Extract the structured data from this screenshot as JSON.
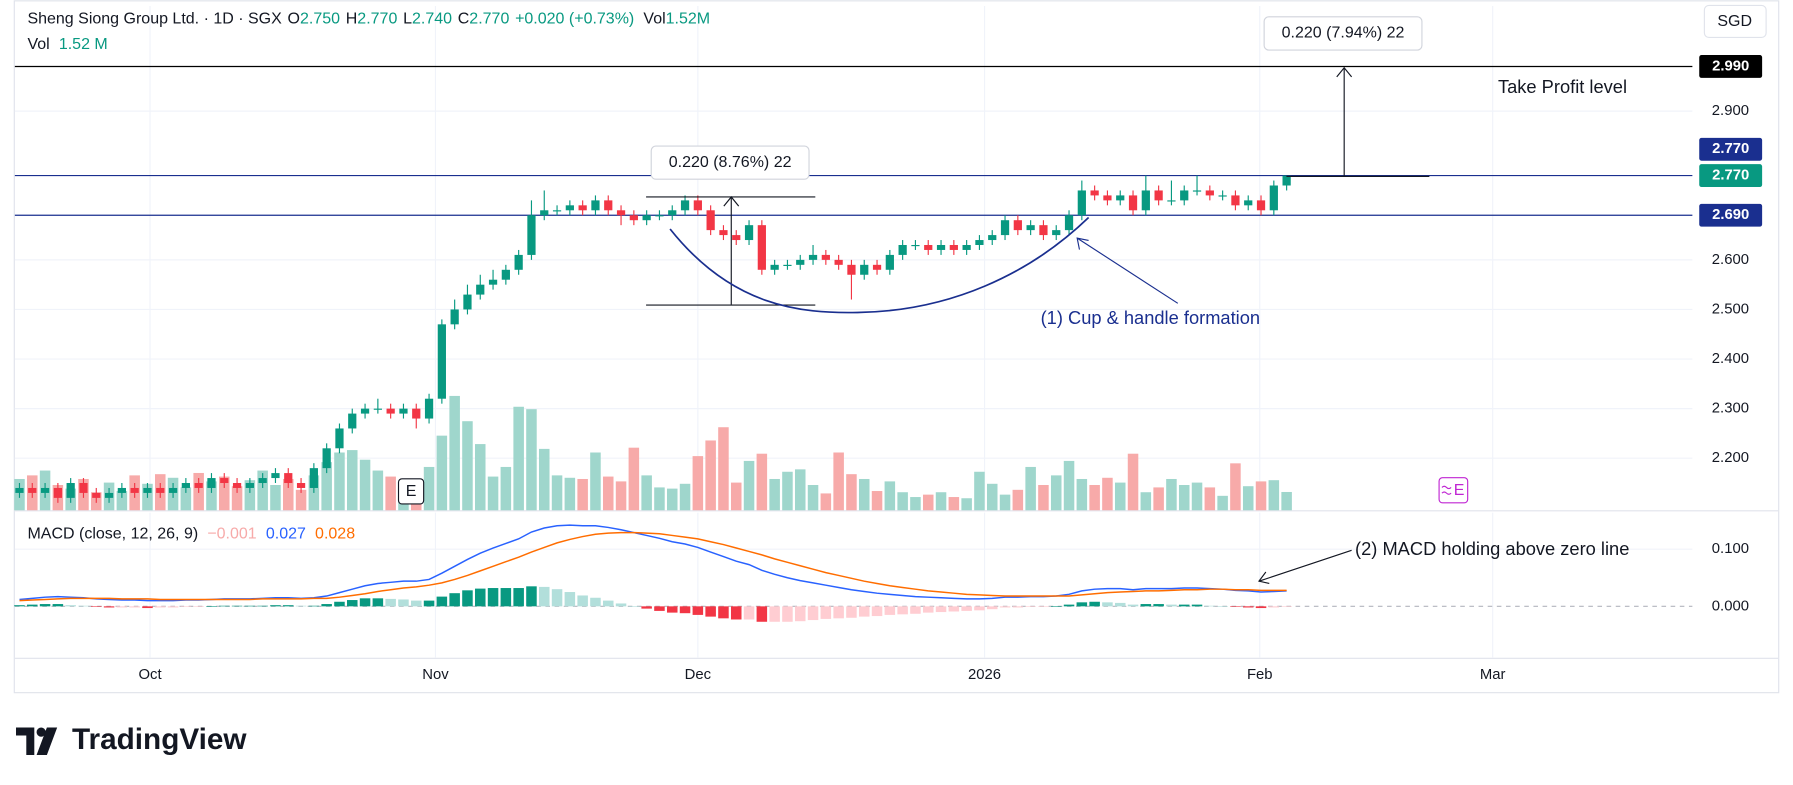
{
  "chart_data": [
    {
      "type": "candlestick",
      "legend": {
        "symbol": "Sheng Siong Group Ltd. · 1D · SGX",
        "open_key": "O",
        "open": "2.750",
        "high_key": "H",
        "high": "2.770",
        "low_key": "L",
        "low": "2.740",
        "close_key": "C",
        "close": "2.770",
        "change": "+0.020 (+0.73%)",
        "volume_key": "Vol",
        "volume": "1.52M"
      },
      "volume_legend": {
        "name": "Vol",
        "value": "1.52 M"
      },
      "currency": "SGD",
      "open": [
        2.13,
        2.14,
        2.13,
        2.14,
        2.12,
        2.15,
        2.13,
        2.12,
        2.13,
        2.14,
        2.13,
        2.14,
        2.13,
        2.14,
        2.15,
        2.14,
        2.16,
        2.15,
        2.14,
        2.15,
        2.16,
        2.17,
        2.15,
        2.14,
        2.18,
        2.22,
        2.26,
        2.29,
        2.3,
        2.3,
        2.29,
        2.3,
        2.28,
        2.32,
        2.47,
        2.5,
        2.53,
        2.55,
        2.56,
        2.58,
        2.61,
        2.69,
        2.7,
        2.7,
        2.71,
        2.7,
        2.72,
        2.7,
        2.69,
        2.68,
        2.69,
        2.69,
        2.7,
        2.72,
        2.7,
        2.66,
        2.65,
        2.64,
        2.67,
        2.58,
        2.59,
        2.59,
        2.6,
        2.61,
        2.6,
        2.59,
        2.57,
        2.59,
        2.58,
        2.61,
        2.63,
        2.63,
        2.62,
        2.63,
        2.62,
        2.63,
        2.64,
        2.65,
        2.68,
        2.66,
        2.67,
        2.65,
        2.66,
        2.69,
        2.74,
        2.73,
        2.72,
        2.73,
        2.7,
        2.74,
        2.72,
        2.72,
        2.74,
        2.74,
        2.73,
        2.73,
        2.71,
        2.72,
        2.7,
        2.75
      ],
      "high": [
        2.15,
        2.15,
        2.15,
        2.15,
        2.16,
        2.16,
        2.14,
        2.14,
        2.15,
        2.15,
        2.15,
        2.15,
        2.15,
        2.16,
        2.16,
        2.17,
        2.17,
        2.16,
        2.16,
        2.17,
        2.18,
        2.18,
        2.16,
        2.19,
        2.23,
        2.27,
        2.3,
        2.31,
        2.32,
        2.31,
        2.31,
        2.31,
        2.33,
        2.48,
        2.52,
        2.55,
        2.57,
        2.58,
        2.59,
        2.62,
        2.72,
        2.74,
        2.71,
        2.72,
        2.72,
        2.73,
        2.73,
        2.71,
        2.7,
        2.7,
        2.7,
        2.71,
        2.73,
        2.73,
        2.71,
        2.67,
        2.66,
        2.68,
        2.68,
        2.6,
        2.6,
        2.61,
        2.63,
        2.62,
        2.61,
        2.6,
        2.6,
        2.6,
        2.62,
        2.64,
        2.64,
        2.64,
        2.64,
        2.64,
        2.64,
        2.65,
        2.66,
        2.69,
        2.69,
        2.68,
        2.68,
        2.67,
        2.7,
        2.76,
        2.75,
        2.74,
        2.74,
        2.74,
        2.77,
        2.75,
        2.76,
        2.75,
        2.77,
        2.75,
        2.74,
        2.74,
        2.73,
        2.73,
        2.76,
        2.77
      ],
      "low": [
        2.12,
        2.12,
        2.12,
        2.11,
        2.11,
        2.12,
        2.11,
        2.11,
        2.12,
        2.12,
        2.12,
        2.12,
        2.12,
        2.13,
        2.13,
        2.13,
        2.14,
        2.13,
        2.13,
        2.14,
        2.15,
        2.14,
        2.13,
        2.13,
        2.17,
        2.21,
        2.25,
        2.28,
        2.29,
        2.28,
        2.28,
        2.26,
        2.27,
        2.31,
        2.46,
        2.49,
        2.52,
        2.54,
        2.55,
        2.57,
        2.6,
        2.68,
        2.69,
        2.69,
        2.69,
        2.69,
        2.69,
        2.67,
        2.67,
        2.67,
        2.68,
        2.68,
        2.69,
        2.69,
        2.65,
        2.64,
        2.63,
        2.63,
        2.57,
        2.57,
        2.58,
        2.58,
        2.59,
        2.59,
        2.58,
        2.52,
        2.56,
        2.57,
        2.57,
        2.6,
        2.62,
        2.61,
        2.61,
        2.61,
        2.61,
        2.62,
        2.63,
        2.64,
        2.65,
        2.65,
        2.64,
        2.64,
        2.65,
        2.68,
        2.72,
        2.71,
        2.71,
        2.69,
        2.69,
        2.71,
        2.71,
        2.71,
        2.73,
        2.72,
        2.72,
        2.7,
        2.7,
        2.69,
        2.69,
        2.74
      ],
      "close": [
        2.14,
        2.13,
        2.14,
        2.12,
        2.15,
        2.13,
        2.12,
        2.13,
        2.14,
        2.13,
        2.14,
        2.13,
        2.14,
        2.15,
        2.14,
        2.16,
        2.15,
        2.14,
        2.15,
        2.16,
        2.17,
        2.15,
        2.14,
        2.18,
        2.22,
        2.26,
        2.29,
        2.3,
        2.3,
        2.29,
        2.3,
        2.28,
        2.32,
        2.47,
        2.5,
        2.53,
        2.55,
        2.56,
        2.58,
        2.61,
        2.69,
        2.7,
        2.7,
        2.71,
        2.7,
        2.72,
        2.7,
        2.69,
        2.68,
        2.69,
        2.69,
        2.7,
        2.72,
        2.7,
        2.66,
        2.65,
        2.64,
        2.67,
        2.58,
        2.59,
        2.59,
        2.6,
        2.61,
        2.6,
        2.59,
        2.57,
        2.59,
        2.58,
        2.61,
        2.63,
        2.63,
        2.62,
        2.63,
        2.62,
        2.63,
        2.64,
        2.65,
        2.68,
        2.66,
        2.67,
        2.65,
        2.66,
        2.69,
        2.74,
        2.73,
        2.72,
        2.73,
        2.7,
        2.74,
        2.72,
        2.72,
        2.74,
        2.74,
        2.73,
        2.73,
        2.71,
        2.72,
        2.7,
        2.75,
        2.77
      ],
      "volume": [
        2.6,
        2.9,
        3.3,
        2.1,
        1.8,
        2.6,
        1.5,
        2.3,
        1.6,
        2.9,
        2.2,
        3.0,
        2.7,
        1.9,
        3.1,
        2.4,
        2.8,
        2.0,
        2.5,
        3.3,
        2.1,
        2.6,
        1.7,
        2.9,
        4.0,
        4.8,
        5.0,
        4.2,
        3.3,
        2.8,
        2.4,
        2.1,
        3.6,
        6.2,
        9.5,
        7.4,
        5.5,
        2.8,
        3.6,
        8.6,
        8.4,
        5.1,
        2.9,
        2.7,
        2.6,
        4.8,
        2.8,
        2.4,
        5.2,
        2.9,
        1.9,
        1.8,
        2.2,
        4.5,
        5.8,
        6.9,
        2.3,
        4.1,
        4.7,
        2.6,
        3.2,
        3.4,
        2.1,
        1.4,
        4.8,
        3.0,
        2.6,
        1.6,
        2.4,
        1.5,
        1.1,
        1.3,
        1.5,
        1.1,
        1.0,
        3.2,
        2.2,
        1.3,
        1.7,
        3.6,
        2.1,
        2.9,
        4.1,
        2.6,
        2.1,
        2.7,
        2.3,
        4.7,
        1.5,
        1.9,
        2.6,
        2.1,
        2.3,
        1.9,
        1.2,
        3.9,
        2.0,
        2.4,
        2.5,
        1.52
      ],
      "up_color": "#089981",
      "down_color": "#f23645",
      "volume_up_color": "#9fd6cc",
      "volume_down_color": "#f7aaa9",
      "xlim": [
        -0.36,
        130.7
      ],
      "ylim": [
        2.095,
        3.112
      ],
      "yticks": [
        {
          "value": 2.9,
          "label": "2.900"
        },
        {
          "value": 2.6,
          "label": "2.600"
        },
        {
          "value": 2.5,
          "label": "2.500"
        },
        {
          "value": 2.4,
          "label": "2.400"
        },
        {
          "value": 2.3,
          "label": "2.300"
        },
        {
          "value": 2.2,
          "label": "2.200"
        }
      ],
      "grid": true,
      "hlines": [
        {
          "value": 2.99,
          "label": "2.990",
          "color": "#000000"
        },
        {
          "value": 2.77,
          "label": "2.770",
          "color": "#1a2f8f"
        },
        {
          "value": 2.69,
          "label": "2.690",
          "color": "#1a2f8f"
        }
      ],
      "last_price": {
        "value": 2.77,
        "label": "2.770",
        "color": "#089981"
      },
      "annotations": {
        "measure_1": "0.220 (8.76%) 22",
        "measure_2": "0.220 (7.94%) 22",
        "take_profit": "Take Profit level",
        "cup": "(1) Cup & handle formation",
        "earnings": "E"
      }
    },
    {
      "type": "line",
      "legend": {
        "name": "MACD (close, 12, 26, 9)",
        "histogram": "−0.001",
        "macd": "0.027",
        "signal": "0.028"
      },
      "annotation": "(2) MACD holding above zero line",
      "xlim": [
        -0.36,
        130.7
      ],
      "xticks": [
        {
          "value": 10.2,
          "label": "Oct"
        },
        {
          "value": 32.5,
          "label": "Nov"
        },
        {
          "value": 53,
          "label": "Dec"
        },
        {
          "value": 75.4,
          "label": "2026"
        },
        {
          "value": 96.9,
          "label": "Feb"
        },
        {
          "value": 115.1,
          "label": "Mar"
        }
      ],
      "ylim": [
        -0.09,
        0.164
      ],
      "yticks": [
        {
          "value": 0.1,
          "label": "0.100"
        },
        {
          "value": 0,
          "label": "0.000"
        }
      ],
      "series": [
        {
          "name": "MACD",
          "color": "#2962ff",
          "values": [
            0.012,
            0.014,
            0.016,
            0.017,
            0.016,
            0.015,
            0.013,
            0.012,
            0.011,
            0.011,
            0.01,
            0.01,
            0.01,
            0.011,
            0.011,
            0.012,
            0.013,
            0.013,
            0.013,
            0.014,
            0.015,
            0.015,
            0.014,
            0.015,
            0.018,
            0.024,
            0.03,
            0.036,
            0.04,
            0.042,
            0.044,
            0.044,
            0.047,
            0.058,
            0.07,
            0.082,
            0.093,
            0.102,
            0.11,
            0.118,
            0.13,
            0.137,
            0.141,
            0.142,
            0.141,
            0.141,
            0.138,
            0.134,
            0.129,
            0.124,
            0.119,
            0.113,
            0.109,
            0.103,
            0.095,
            0.087,
            0.079,
            0.073,
            0.063,
            0.056,
            0.05,
            0.045,
            0.041,
            0.037,
            0.033,
            0.029,
            0.026,
            0.023,
            0.021,
            0.019,
            0.017,
            0.016,
            0.015,
            0.014,
            0.013,
            0.013,
            0.014,
            0.016,
            0.016,
            0.017,
            0.017,
            0.018,
            0.021,
            0.027,
            0.03,
            0.031,
            0.031,
            0.029,
            0.031,
            0.031,
            0.031,
            0.032,
            0.032,
            0.031,
            0.03,
            0.028,
            0.027,
            0.025,
            0.026,
            0.027
          ]
        },
        {
          "name": "Signal",
          "color": "#ff6d00",
          "values": [
            0.01,
            0.011,
            0.012,
            0.013,
            0.014,
            0.014,
            0.014,
            0.014,
            0.013,
            0.013,
            0.013,
            0.012,
            0.012,
            0.012,
            0.012,
            0.012,
            0.012,
            0.012,
            0.012,
            0.013,
            0.013,
            0.013,
            0.013,
            0.014,
            0.014,
            0.016,
            0.019,
            0.022,
            0.026,
            0.029,
            0.032,
            0.034,
            0.037,
            0.041,
            0.047,
            0.054,
            0.062,
            0.07,
            0.078,
            0.086,
            0.095,
            0.103,
            0.111,
            0.117,
            0.122,
            0.126,
            0.128,
            0.129,
            0.129,
            0.128,
            0.127,
            0.124,
            0.121,
            0.118,
            0.113,
            0.108,
            0.102,
            0.096,
            0.09,
            0.083,
            0.077,
            0.071,
            0.065,
            0.059,
            0.054,
            0.049,
            0.044,
            0.04,
            0.036,
            0.033,
            0.03,
            0.027,
            0.025,
            0.023,
            0.021,
            0.02,
            0.019,
            0.018,
            0.018,
            0.018,
            0.018,
            0.018,
            0.018,
            0.02,
            0.022,
            0.024,
            0.025,
            0.026,
            0.027,
            0.027,
            0.028,
            0.029,
            0.029,
            0.03,
            0.03,
            0.029,
            0.029,
            0.028,
            0.028,
            0.028
          ]
        }
      ],
      "histogram": {
        "name": "Histogram",
        "colors": [
          "#089981",
          "#b2dfdb",
          "#f23645",
          "#ffcdd2"
        ],
        "values": [
          0.002,
          0.003,
          0.004,
          0.004,
          0.002,
          0.001,
          -0.001,
          -0.002,
          -0.002,
          -0.002,
          -0.003,
          -0.002,
          -0.002,
          -0.001,
          -0.001,
          0,
          0.001,
          0.001,
          0.001,
          0.001,
          0.002,
          0.002,
          0.001,
          0.001,
          0.004,
          0.008,
          0.011,
          0.014,
          0.014,
          0.013,
          0.012,
          0.01,
          0.01,
          0.017,
          0.023,
          0.028,
          0.031,
          0.032,
          0.032,
          0.032,
          0.035,
          0.034,
          0.03,
          0.025,
          0.019,
          0.015,
          0.01,
          0.005,
          0.0,
          -0.004,
          -0.008,
          -0.011,
          -0.012,
          -0.015,
          -0.018,
          -0.021,
          -0.023,
          -0.023,
          -0.027,
          -0.027,
          -0.027,
          -0.026,
          -0.024,
          -0.022,
          -0.021,
          -0.02,
          -0.018,
          -0.017,
          -0.015,
          -0.014,
          -0.013,
          -0.011,
          -0.01,
          -0.009,
          -0.008,
          -0.007,
          -0.005,
          -0.002,
          -0.002,
          -0.001,
          -0.001,
          0,
          0.003,
          0.007,
          0.008,
          0.007,
          0.006,
          0.003,
          0.004,
          0.004,
          0.003,
          0.003,
          0.003,
          0.001,
          0,
          -0.001,
          -0.002,
          -0.003,
          -0.002,
          -0.001
        ]
      }
    }
  ],
  "branding": {
    "logo": "TradingView"
  }
}
